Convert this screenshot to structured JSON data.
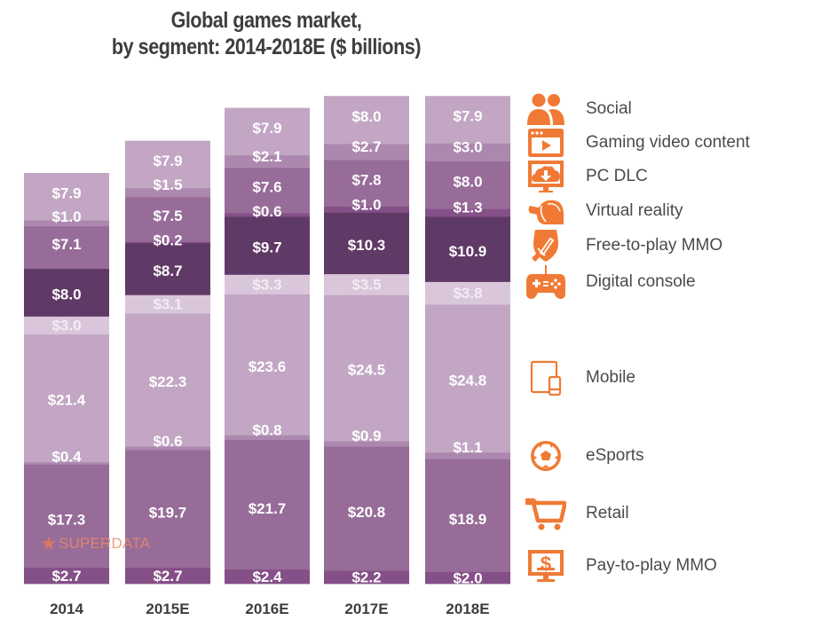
{
  "title": {
    "line1": "Global games market,",
    "line2": "by segment: 2014-2018E ($ billions)"
  },
  "watermark": {
    "star": "★",
    "text": "SUPERDATA"
  },
  "colors": {
    "icon": "#f07a35",
    "label_text": "#ffffff",
    "axis_text": "#3d3d3d"
  },
  "chart_data": {
    "type": "bar",
    "stacked": true,
    "title": "Global games market, by segment: 2014-2018E ($ billions)",
    "xlabel": "",
    "ylabel": "$ billions",
    "categories": [
      "2014",
      "2015E",
      "2016E",
      "2017E",
      "2018E"
    ],
    "legend_position": "right",
    "grid": false,
    "series": [
      {
        "name": "Pay-to-play MMO",
        "icon": "monitor-dollar-icon",
        "color": "#854f88",
        "values": [
          2.7,
          2.7,
          2.4,
          2.2,
          2.0
        ],
        "labels": [
          "$2.7",
          "$2.7",
          "$2.4",
          "$2.2",
          "$2.0"
        ]
      },
      {
        "name": "Retail",
        "icon": "shopping-cart-icon",
        "color": "#976c98",
        "values": [
          17.3,
          19.7,
          21.7,
          20.8,
          18.9
        ],
        "labels": [
          "$17.3",
          "$19.7",
          "$21.7",
          "$20.8",
          "$18.9"
        ]
      },
      {
        "name": "eSports",
        "icon": "soccer-ball-icon",
        "color": "#ac88ae",
        "values": [
          0.4,
          0.6,
          0.8,
          0.9,
          1.1
        ],
        "labels": [
          "$0.4",
          "$0.6",
          "$0.8",
          "$0.9",
          "$1.1"
        ]
      },
      {
        "name": "Mobile",
        "icon": "tablet-phone-icon",
        "color": "#c2a6c4",
        "values": [
          21.4,
          22.3,
          23.6,
          24.5,
          24.8
        ],
        "labels": [
          "$21.4",
          "$22.3",
          "$23.6",
          "$24.5",
          "$24.8"
        ]
      },
      {
        "name": "Digital console",
        "icon": "gamepad-icon",
        "color": "#dac6db",
        "values": [
          3.0,
          3.1,
          3.3,
          3.5,
          3.8
        ],
        "labels": [
          "$3.0",
          "$3.1",
          "$3.3",
          "$3.5",
          "$3.8"
        ]
      },
      {
        "name": "Free-to-play MMO",
        "icon": "shield-sword-icon",
        "color": "#603a66",
        "values": [
          8.0,
          8.7,
          9.7,
          10.3,
          10.9
        ],
        "labels": [
          "$8.0",
          "$8.7",
          "$9.7",
          "$10.3",
          "$10.9"
        ]
      },
      {
        "name": "Virtual reality",
        "icon": "vr-headset-icon",
        "color": "#854f88",
        "values": [
          0,
          0.2,
          0.6,
          1.0,
          1.3
        ],
        "labels": [
          null,
          "$0.2",
          "$0.6",
          "$1.0",
          "$1.3"
        ]
      },
      {
        "name": "PC DLC",
        "icon": "monitor-download-icon",
        "color": "#976c98",
        "values": [
          7.1,
          7.5,
          7.6,
          7.8,
          8.0
        ],
        "labels": [
          "$7.1",
          "$7.5",
          "$7.6",
          "$7.8",
          "$8.0"
        ]
      },
      {
        "name": "Gaming video content",
        "icon": "video-player-icon",
        "color": "#ac88ae",
        "values": [
          1.0,
          1.5,
          2.1,
          2.7,
          3.0
        ],
        "labels": [
          "$1.0",
          "$1.5",
          "$2.1",
          "$2.7",
          "$3.0"
        ]
      },
      {
        "name": "Social",
        "icon": "users-icon",
        "color": "#c2a6c4",
        "values": [
          7.9,
          7.9,
          7.9,
          8.0,
          7.9
        ],
        "labels": [
          "$7.9",
          "$7.9",
          "$7.9",
          "$8.0",
          "$7.9"
        ]
      }
    ]
  },
  "legend": [
    {
      "label": "Social",
      "icon": "users-icon"
    },
    {
      "label": "Gaming video content",
      "icon": "video-player-icon"
    },
    {
      "label": "PC DLC",
      "icon": "monitor-download-icon"
    },
    {
      "label": "Virtual reality",
      "icon": "vr-headset-icon"
    },
    {
      "label": "Free-to-play MMO",
      "icon": "shield-sword-icon"
    },
    {
      "label": "Digital console",
      "icon": "gamepad-icon"
    },
    {
      "label": "Mobile",
      "icon": "tablet-phone-icon"
    },
    {
      "label": "eSports",
      "icon": "soccer-ball-icon"
    },
    {
      "label": "Retail",
      "icon": "shopping-cart-icon"
    },
    {
      "label": "Pay-to-play MMO",
      "icon": "monitor-dollar-icon"
    }
  ]
}
